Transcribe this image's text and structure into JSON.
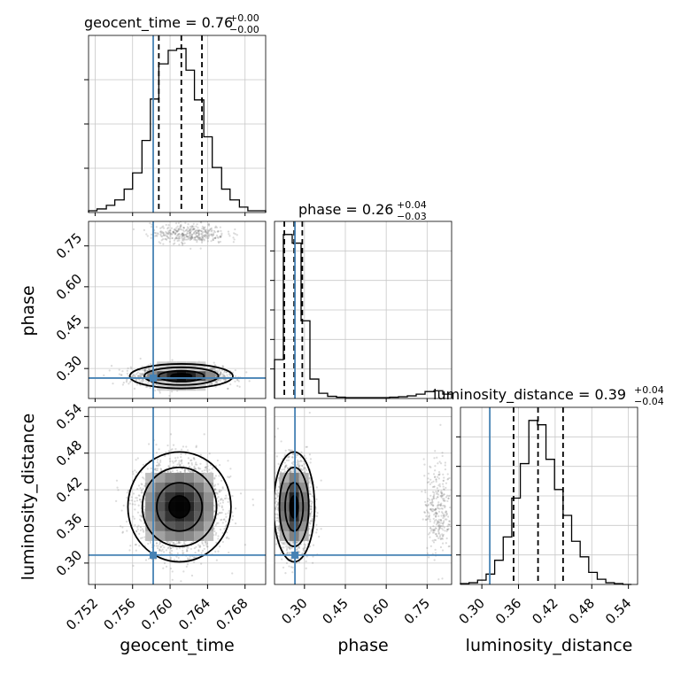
{
  "chart_data": {
    "type": "corner",
    "parameters": [
      "geocent_time",
      "phase",
      "luminosity_distance"
    ],
    "truths": {
      "geocent_time": 0.7582,
      "phase": 0.265,
      "luminosity_distance": 0.313
    },
    "marginals": [
      {
        "parameter": "geocent_time",
        "title": {
          "main": "geocent_time = 0.76",
          "sup": "+0.00",
          "sub": "−0.00"
        },
        "quantiles": [
          0.7588,
          0.7612,
          0.7634
        ],
        "bin_edges": [
          0.7513,
          0.7522,
          0.7532,
          0.7541,
          0.7551,
          0.756,
          0.757,
          0.7579,
          0.7588,
          0.7598,
          0.7607,
          0.7617,
          0.7626,
          0.7636,
          0.7645,
          0.7655,
          0.7664,
          0.7674,
          0.7683,
          0.7693,
          0.7702
        ],
        "counts": [
          2,
          4,
          8,
          14,
          26,
          44,
          80,
          126,
          165,
          180,
          182,
          158,
          125,
          84,
          50,
          26,
          14,
          6,
          2,
          2
        ],
        "ytick_count": 4
      },
      {
        "parameter": "phase",
        "title": {
          "main": "phase = 0.26",
          "sup": "+0.04",
          "sub": "−0.03"
        },
        "quantiles": [
          0.226,
          0.262,
          0.292
        ],
        "bin_edges": [
          0.19,
          0.2225,
          0.255,
          0.2875,
          0.32,
          0.3525,
          0.385,
          0.4175,
          0.45,
          0.4825,
          0.515,
          0.5475,
          0.58,
          0.6125,
          0.645,
          0.6775,
          0.71,
          0.7425,
          0.775,
          0.8075,
          0.84
        ],
        "counts": [
          90,
          380,
          360,
          180,
          45,
          12,
          5,
          3,
          2,
          2,
          2,
          2,
          2,
          3,
          4,
          6,
          10,
          16,
          18,
          10
        ],
        "ytick_count": 6
      },
      {
        "parameter": "luminosity_distance",
        "title": {
          "main": "luminosity_distance = 0.39",
          "sup": "+0.04",
          "sub": "−0.04"
        },
        "quantiles": [
          0.352,
          0.392,
          0.433
        ],
        "bin_edges": [
          0.265,
          0.279,
          0.293,
          0.307,
          0.321,
          0.335,
          0.349,
          0.363,
          0.377,
          0.391,
          0.405,
          0.419,
          0.433,
          0.447,
          0.461,
          0.475,
          0.489,
          0.503,
          0.517,
          0.531,
          0.545
        ],
        "counts": [
          1,
          2,
          5,
          12,
          28,
          55,
          100,
          140,
          190,
          185,
          145,
          110,
          80,
          50,
          32,
          14,
          6,
          2,
          1,
          0
        ],
        "ytick_count": 6
      }
    ],
    "axes": {
      "geocent_time": {
        "range": [
          0.7513,
          0.7702
        ],
        "ticks": [
          "0.752",
          "0.756",
          "0.760",
          "0.764",
          "0.768"
        ]
      },
      "phase": {
        "range": [
          0.19,
          0.84
        ],
        "ticks": [
          "0.30",
          "0.45",
          "0.60",
          "0.75"
        ]
      },
      "luminosity_distance": {
        "range": [
          0.265,
          0.555
        ],
        "ticks": [
          "0.30",
          "0.36",
          "0.42",
          "0.48",
          "0.54"
        ]
      }
    },
    "joint": [
      {
        "x": "geocent_time",
        "y": "phase",
        "clusters": [
          {
            "mean": [
              0.7612,
              0.272
            ],
            "std": [
              0.0022,
              0.018
            ],
            "share": 0.85
          },
          {
            "mean": [
              0.762,
              0.795
            ],
            "std": [
              0.002,
              0.018
            ],
            "share": 0.15
          }
        ],
        "peak": [
          0.761,
          0.268
        ]
      },
      {
        "x": "geocent_time",
        "y": "luminosity_distance",
        "clusters": [
          {
            "mean": [
              0.761,
              0.392
            ],
            "std": [
              0.0022,
              0.036
            ],
            "share": 1.0
          }
        ],
        "peak": [
          0.7612,
          0.388
        ]
      },
      {
        "x": "phase",
        "y": "luminosity_distance",
        "clusters": [
          {
            "mean": [
              0.262,
              0.392
            ],
            "std": [
              0.03,
              0.036
            ],
            "share": 0.88
          },
          {
            "mean": [
              0.79,
              0.39
            ],
            "std": [
              0.025,
              0.038
            ],
            "share": 0.12
          }
        ],
        "peak": [
          0.258,
          0.388
        ]
      }
    ],
    "colors": {
      "truth": "#4682b4",
      "hist": "#000000",
      "grid": "#c8c8c8",
      "points": "#7f7f7f"
    },
    "grid": true
  }
}
